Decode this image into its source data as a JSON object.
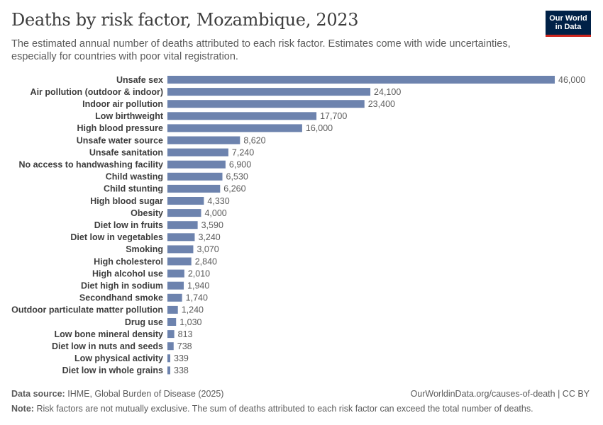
{
  "title": "Deaths by risk factor, Mozambique, 2023",
  "subtitle": "The estimated annual number of deaths attributed to each risk factor. Estimates come with wide uncertainties, especially for countries with poor vital registration.",
  "logo": {
    "line1": "Our World",
    "line2": "in Data"
  },
  "footer": {
    "source_label": "Data source:",
    "source_text": "IHME, Global Burden of Disease (2025)",
    "url": "OurWorldinData.org/causes-of-death | CC BY",
    "note_label": "Note:",
    "note_text": "Risk factors are not mutually exclusive. The sum of deaths attributed to each risk factor can exceed the total number of deaths."
  },
  "colors": {
    "bar": "#6d83ae",
    "title": "#3d3d3d",
    "text": "#5b5b5b",
    "logo_bg": "#002147",
    "logo_accent": "#ce261e"
  },
  "chart_data": {
    "type": "bar",
    "orientation": "horizontal",
    "categories": [
      "Unsafe sex",
      "Air pollution (outdoor & indoor)",
      "Indoor air pollution",
      "Low birthweight",
      "High blood pressure",
      "Unsafe water source",
      "Unsafe sanitation",
      "No access to handwashing facility",
      "Child wasting",
      "Child stunting",
      "High blood sugar",
      "Obesity",
      "Diet low in fruits",
      "Diet low in vegetables",
      "Smoking",
      "High cholesterol",
      "High alcohol use",
      "Diet high in sodium",
      "Secondhand smoke",
      "Outdoor particulate matter pollution",
      "Drug use",
      "Low bone mineral density",
      "Diet low in nuts and seeds",
      "Low physical activity",
      "Diet low in whole grains"
    ],
    "values": [
      46000,
      24100,
      23400,
      17700,
      16000,
      8620,
      7240,
      6900,
      6530,
      6260,
      4330,
      4000,
      3590,
      3240,
      3070,
      2840,
      2010,
      1940,
      1740,
      1240,
      1030,
      813,
      738,
      339,
      338
    ],
    "value_labels": [
      "46,000",
      "24,100",
      "23,400",
      "17,700",
      "16,000",
      "8,620",
      "7,240",
      "6,900",
      "6,530",
      "6,260",
      "4,330",
      "4,000",
      "3,590",
      "3,240",
      "3,070",
      "2,840",
      "2,010",
      "1,940",
      "1,740",
      "1,240",
      "1,030",
      "813",
      "738",
      "339",
      "338"
    ],
    "title": "Deaths by risk factor, Mozambique, 2023",
    "xlabel": "",
    "ylabel": "",
    "xlim": [
      0,
      46000
    ],
    "grid": false,
    "legend": "none"
  }
}
